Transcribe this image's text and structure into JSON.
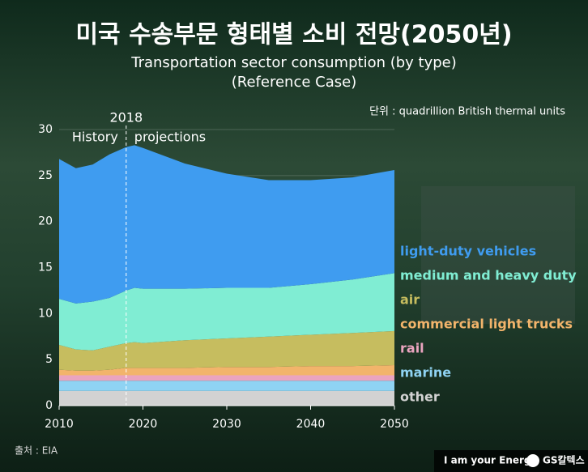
{
  "chart_data": {
    "type": "stacked_area",
    "title": "미국 수송부문 형태별 소비 전망(2050년)",
    "subtitle": [
      "Transportation sector consumption (by type)",
      "(Reference Case)"
    ],
    "unit_label": "단위 : quadrillion British thermal units",
    "forecast_start": 2018,
    "history_label": "History",
    "projection_label": "projections",
    "x": [
      2010,
      2012,
      2014,
      2016,
      2018,
      2019,
      2020,
      2025,
      2030,
      2035,
      2040,
      2045,
      2050
    ],
    "xlim": [
      2010,
      2050
    ],
    "xticks": [
      2010,
      2020,
      2030,
      2040,
      2050
    ],
    "ylim": [
      0,
      30
    ],
    "yticks": [
      0,
      5,
      10,
      15,
      20,
      25,
      30
    ],
    "grid": true,
    "series": [
      {
        "name": "other",
        "color": "#d2d2d2",
        "values": [
          1.6,
          1.6,
          1.6,
          1.6,
          1.6,
          1.6,
          1.6,
          1.6,
          1.6,
          1.6,
          1.6,
          1.6,
          1.6
        ]
      },
      {
        "name": "marine",
        "color": "#8fd3f3",
        "values": [
          1.1,
          1.1,
          1.1,
          1.1,
          1.1,
          1.1,
          1.1,
          1.1,
          1.1,
          1.1,
          1.1,
          1.1,
          1.1
        ]
      },
      {
        "name": "rail",
        "color": "#eaa4bf",
        "values": [
          0.6,
          0.6,
          0.6,
          0.6,
          0.6,
          0.6,
          0.6,
          0.6,
          0.6,
          0.6,
          0.6,
          0.6,
          0.6
        ]
      },
      {
        "name": "commercial light trucks",
        "color": "#f2b46b",
        "values": [
          0.6,
          0.5,
          0.5,
          0.6,
          0.8,
          0.8,
          0.8,
          0.8,
          0.9,
          0.9,
          1.0,
          1.0,
          1.1
        ]
      },
      {
        "name": "air",
        "color": "#c6bd5f",
        "values": [
          2.7,
          2.3,
          2.2,
          2.5,
          2.7,
          2.8,
          2.7,
          3.0,
          3.1,
          3.3,
          3.4,
          3.6,
          3.7
        ]
      },
      {
        "name": "medium and heavy duty",
        "color": "#80edd3",
        "values": [
          5.0,
          5.0,
          5.3,
          5.3,
          5.7,
          5.9,
          5.9,
          5.6,
          5.5,
          5.3,
          5.5,
          5.8,
          6.3
        ]
      },
      {
        "name": "light-duty vehicles",
        "color": "#3f9cf0",
        "values": [
          15.2,
          14.7,
          14.9,
          15.6,
          15.6,
          15.5,
          15.3,
          13.6,
          12.4,
          11.7,
          11.3,
          11.1,
          11.2
        ]
      }
    ]
  },
  "source": "출처 : EIA",
  "footer": {
    "slogan": "I am your Energy",
    "brand": "GS칼텍스"
  }
}
